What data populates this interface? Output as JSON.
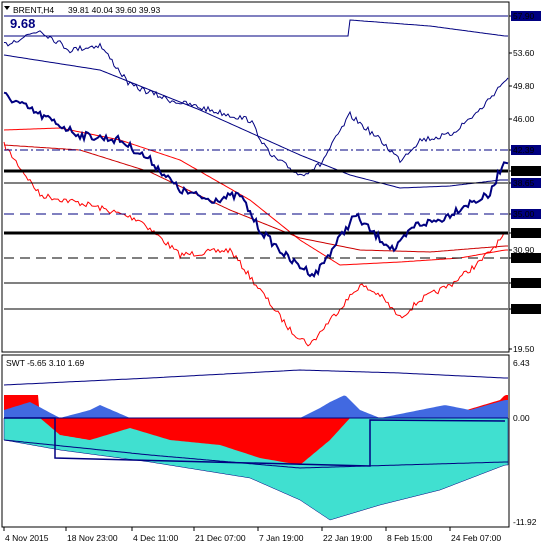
{
  "header": {
    "menu_icon": "triangle-down-icon",
    "symbol": "BRENT,H4",
    "ohlc": "39.81 40.04 39.60 39.93",
    "overlay_value": "9.68"
  },
  "price_axis": {
    "ticks": [
      "57.90",
      "53.60",
      "49.80",
      "46.00",
      "42.39",
      "40.00",
      "38.65",
      "35.00",
      "32.80",
      "30.90",
      "29.91",
      "27.08",
      "24.10",
      "19.50"
    ]
  },
  "levels": [
    {
      "name": "57.90",
      "style": "solid-thin",
      "color": "#000080",
      "value": 57.9
    },
    {
      "name": "42.39",
      "style": "dashdot",
      "color": "#000080",
      "value": 42.39
    },
    {
      "name": "40.00",
      "style": "solid-thick",
      "color": "#000000",
      "value": 40.0
    },
    {
      "name": "38.65",
      "style": "solid-thin",
      "color": "#000000",
      "value": 38.65
    },
    {
      "name": "35.00",
      "style": "dashed",
      "color": "#000080",
      "value": 35.0
    },
    {
      "name": "32.80",
      "style": "solid-thick",
      "color": "#000000",
      "value": 32.8
    },
    {
      "name": "29.91",
      "style": "dashed",
      "color": "#000000",
      "value": 29.91
    },
    {
      "name": "27.08",
      "style": "solid-thin",
      "color": "#000000",
      "value": 27.08
    },
    {
      "name": "24.10",
      "style": "solid-thin",
      "color": "#000000",
      "value": 24.1
    }
  ],
  "price_tags": [
    {
      "text": "57.90",
      "bg": "#000080",
      "fg": "#ffffff"
    },
    {
      "text": "42.39",
      "bg": "#000080",
      "fg": "#ffffff"
    },
    {
      "text": "40.00",
      "bg": "#000000",
      "fg": "#ffffff"
    },
    {
      "text": "38.65",
      "bg": "#000080",
      "fg": "#ffffff"
    },
    {
      "text": "35.00",
      "bg": "#000080",
      "fg": "#ffffff"
    },
    {
      "text": "32.80",
      "bg": "#000000",
      "fg": "#ffffff"
    },
    {
      "text": "29.91",
      "bg": "#000000",
      "fg": "#ffffff"
    },
    {
      "text": "27.08",
      "bg": "#000000",
      "fg": "#ffffff"
    },
    {
      "text": "24.10",
      "bg": "#000000",
      "fg": "#ffffff"
    }
  ],
  "indicator": {
    "label": "SWT -5.65 3.10 1.69",
    "ticks": [
      "6.43",
      "0.00",
      "-11.92"
    ],
    "colors": {
      "up": "#ff0000",
      "down": "#4169e1",
      "fill": "#40e0d0",
      "line": "#000080"
    }
  },
  "time_axis": {
    "labels": [
      "4 Nov 2015",
      "18 Nov 23:00",
      "4 Dec 11:00",
      "21 Dec 07:00",
      "7 Jan 19:00",
      "22 Jan 19:00",
      "8 Feb 15:00",
      "24 Feb 07:00"
    ]
  },
  "colors": {
    "price_line": "#000080",
    "ma_red": "#ff0000",
    "ma_dark_red": "#cc0000",
    "ma_blue": "#000080"
  }
}
